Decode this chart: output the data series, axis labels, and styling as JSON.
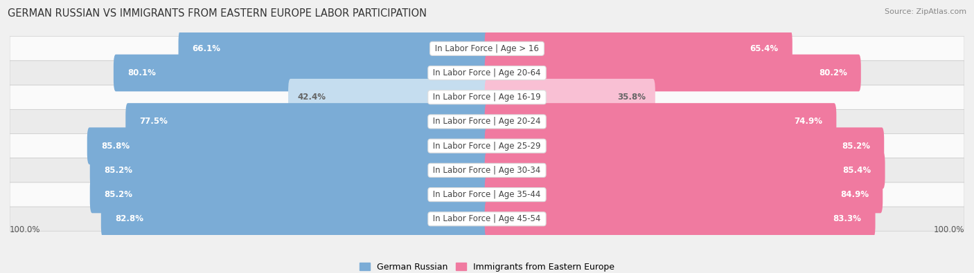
{
  "title": "GERMAN RUSSIAN VS IMMIGRANTS FROM EASTERN EUROPE LABOR PARTICIPATION",
  "source": "Source: ZipAtlas.com",
  "categories": [
    "In Labor Force | Age > 16",
    "In Labor Force | Age 20-64",
    "In Labor Force | Age 16-19",
    "In Labor Force | Age 20-24",
    "In Labor Force | Age 25-29",
    "In Labor Force | Age 30-34",
    "In Labor Force | Age 35-44",
    "In Labor Force | Age 45-54"
  ],
  "german_russian": [
    66.1,
    80.1,
    42.4,
    77.5,
    85.8,
    85.2,
    85.2,
    82.8
  ],
  "eastern_europe": [
    65.4,
    80.2,
    35.8,
    74.9,
    85.2,
    85.4,
    84.9,
    83.3
  ],
  "color_german": "#7bacd6",
  "color_eastern": "#f07aa0",
  "color_german_light": "#c5ddef",
  "color_eastern_light": "#f9c0d4",
  "bar_height": 0.52,
  "bg_color": "#f0f0f0",
  "row_bg_even": "#fafafa",
  "row_bg_odd": "#ebebeb",
  "max_value": 100.0,
  "label_fontsize": 8.5,
  "category_fontsize": 8.5,
  "title_fontsize": 10.5,
  "legend_fontsize": 9,
  "source_fontsize": 8
}
